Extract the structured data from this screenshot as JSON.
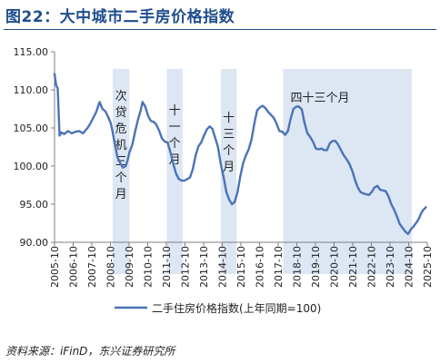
{
  "header": {
    "title": "图22：大中城市二手房价格指数"
  },
  "footer": {
    "source": "资料来源：iFinD，东兴证券研究所"
  },
  "chart_data": {
    "type": "line",
    "title": "图22：大中城市二手房价格指数",
    "xlabel": "",
    "ylabel": "",
    "ylim": [
      90,
      115
    ],
    "y_ticks": [
      "115.00",
      "110.00",
      "105.00",
      "100.00",
      "95.00",
      "90.00"
    ],
    "y_tick_values": [
      115,
      110,
      105,
      100,
      95,
      90
    ],
    "x_ticks": [
      "2005-10",
      "2006-10",
      "2007-10",
      "2008-10",
      "2009-10",
      "2010-10",
      "2011-10",
      "2012-10",
      "2013-10",
      "2014-10",
      "2015-10",
      "2016-10",
      "2017-10",
      "2018-10",
      "2019-10",
      "2020-10",
      "2021-10",
      "2022-10",
      "2023-10",
      "2024-10",
      "2025-10"
    ],
    "grid": false,
    "legend_position": "bottom",
    "series": [
      {
        "name": "二手住房价格指数(上年同期=100)",
        "color": "#4a73b8",
        "x": [
          2005.83,
          2005.92,
          2006.0,
          2006.1,
          2006.2,
          2006.35,
          2006.55,
          2006.75,
          2006.95,
          2007.15,
          2007.35,
          2007.5,
          2007.6,
          2007.75,
          2007.9,
          2008.05,
          2008.25,
          2008.4,
          2008.55,
          2008.7,
          2008.85,
          2008.95,
          2009.05,
          2009.2,
          2009.35,
          2009.5,
          2009.65,
          2009.75,
          2009.85,
          2010.0,
          2010.15,
          2010.3,
          2010.45,
          2010.55,
          2010.7,
          2010.85,
          2011.0,
          2011.15,
          2011.3,
          2011.45,
          2011.6,
          2011.75,
          2011.9,
          2012.05,
          2012.2,
          2012.35,
          2012.5,
          2012.65,
          2012.8,
          2012.95,
          2013.1,
          2013.25,
          2013.4,
          2013.55,
          2013.7,
          2013.85,
          2014.0,
          2014.15,
          2014.3,
          2014.45,
          2014.6,
          2014.75,
          2014.9,
          2015.05,
          2015.2,
          2015.35,
          2015.5,
          2015.65,
          2015.8,
          2015.95,
          2016.1,
          2016.25,
          2016.4,
          2016.55,
          2016.7,
          2016.85,
          2017.0,
          2017.15,
          2017.3,
          2017.45,
          2017.6,
          2017.75,
          2017.9,
          2018.05,
          2018.2,
          2018.35,
          2018.5,
          2018.65,
          2018.8,
          2018.95,
          2019.1,
          2019.25,
          2019.4,
          2019.55,
          2019.7,
          2019.85,
          2020.0,
          2020.15,
          2020.3,
          2020.45,
          2020.6,
          2020.75,
          2020.9,
          2021.05,
          2021.2,
          2021.35,
          2021.5,
          2021.65,
          2021.8,
          2021.95,
          2022.1,
          2022.25,
          2022.4,
          2022.55,
          2022.7,
          2022.85,
          2023.0,
          2023.15,
          2023.3,
          2023.45,
          2023.6,
          2023.75,
          2023.9,
          2024.05,
          2024.2,
          2024.35,
          2024.5,
          2024.65,
          2024.8,
          2024.95,
          2025.1,
          2025.25,
          2025.4,
          2025.5,
          2025.6,
          2025.75
        ],
        "values": [
          112.1,
          110.6,
          110.2,
          104.0,
          104.4,
          104.2,
          104.6,
          104.3,
          104.5,
          104.6,
          104.3,
          104.7,
          105.0,
          105.6,
          106.3,
          107.0,
          108.4,
          107.5,
          107.2,
          106.5,
          105.6,
          104.4,
          103.1,
          101.2,
          100.4,
          99.8,
          100.0,
          100.8,
          101.8,
          102.8,
          104.5,
          106.0,
          107.3,
          108.4,
          107.8,
          106.6,
          105.9,
          105.8,
          105.4,
          104.6,
          103.6,
          103.2,
          103.1,
          101.8,
          100.3,
          99.0,
          98.3,
          98.1,
          98.1,
          98.3,
          98.5,
          99.6,
          101.4,
          102.6,
          103.1,
          104.0,
          104.8,
          105.2,
          104.9,
          103.7,
          102.5,
          100.2,
          98.6,
          96.6,
          95.6,
          95.0,
          95.3,
          96.6,
          98.7,
          100.4,
          101.4,
          102.2,
          103.5,
          105.6,
          107.3,
          107.7,
          107.9,
          107.6,
          107.1,
          106.7,
          106.3,
          105.5,
          104.6,
          104.5,
          104.1,
          104.6,
          106.2,
          107.5,
          107.8,
          107.8,
          107.4,
          105.6,
          104.3,
          103.8,
          103.2,
          102.3,
          102.2,
          102.3,
          102.1,
          102.1,
          103.0,
          103.3,
          103.3,
          102.8,
          102.1,
          101.4,
          100.9,
          100.3,
          99.4,
          98.2,
          97.2,
          96.6,
          96.4,
          96.3,
          96.2,
          96.6,
          97.2,
          97.4,
          96.9,
          96.8,
          96.7,
          96.0,
          95.0,
          94.3,
          93.4,
          92.4,
          91.9,
          91.4,
          91.1,
          91.7,
          92.1,
          92.6,
          93.2,
          93.8,
          94.2,
          94.6
        ]
      }
    ],
    "shaded_periods": [
      {
        "start": 2008.95,
        "end": 2009.85,
        "label": "次贷危机三个月"
      },
      {
        "start": 2011.85,
        "end": 2012.7,
        "label": "十一个月"
      },
      {
        "start": 2014.75,
        "end": 2015.6,
        "label": "十三个月"
      },
      {
        "start": 2018.1,
        "end": 2025.0,
        "label": "四十三个月"
      }
    ],
    "shade_color": "#dde6f3"
  }
}
